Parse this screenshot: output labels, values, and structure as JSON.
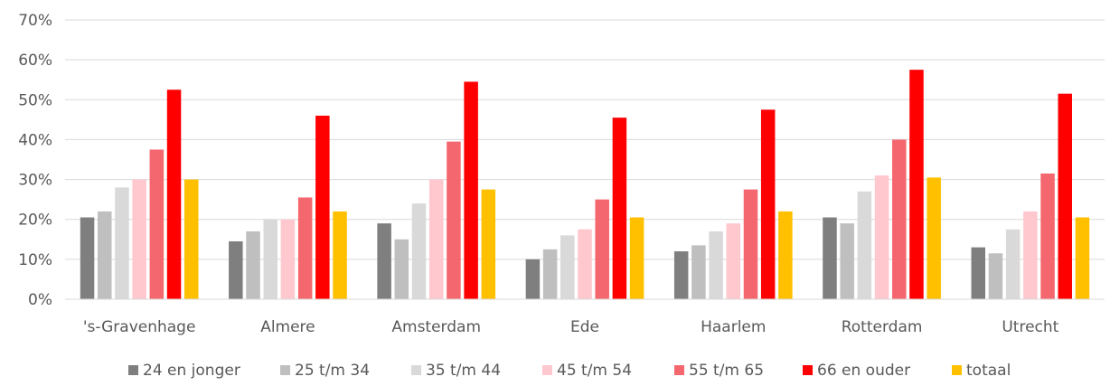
{
  "chart_data": {
    "type": "bar",
    "categories": [
      "'s-Gravenhage",
      "Almere",
      "Amsterdam",
      "Ede",
      "Haarlem",
      "Rotterdam",
      "Utrecht"
    ],
    "series": [
      {
        "name": "24 en jonger",
        "color": "#7f7f7f",
        "values": [
          20.5,
          14.5,
          19.0,
          10.0,
          12.0,
          20.5,
          13.0
        ]
      },
      {
        "name": "25 t/m 34",
        "color": "#bfbfbf",
        "values": [
          22.0,
          17.0,
          15.0,
          12.5,
          13.5,
          19.0,
          11.5
        ]
      },
      {
        "name": "35 t/m 44",
        "color": "#d9d9d9",
        "values": [
          28.0,
          20.0,
          24.0,
          16.0,
          17.0,
          27.0,
          17.5
        ]
      },
      {
        "name": "45 t/m 54",
        "color": "#ffc7ce",
        "values": [
          30.0,
          20.0,
          30.0,
          17.5,
          19.0,
          31.0,
          22.0
        ]
      },
      {
        "name": "55 t/m 65",
        "color": "#f4676e",
        "values": [
          37.5,
          25.5,
          39.5,
          25.0,
          27.5,
          40.0,
          31.5
        ]
      },
      {
        "name": "66 en ouder",
        "color": "#ff0000",
        "values": [
          52.5,
          46.0,
          54.5,
          45.5,
          47.5,
          57.5,
          51.5
        ]
      },
      {
        "name": "totaal",
        "color": "#ffc000",
        "values": [
          30.0,
          22.0,
          27.5,
          20.5,
          22.0,
          30.5,
          20.5
        ]
      }
    ],
    "y_ticks": [
      "0%",
      "10%",
      "20%",
      "30%",
      "40%",
      "50%",
      "60%",
      "70%"
    ],
    "ylim": [
      0,
      70
    ],
    "grid": true,
    "legend_position": "bottom",
    "title": "",
    "xlabel": "",
    "ylabel": ""
  }
}
